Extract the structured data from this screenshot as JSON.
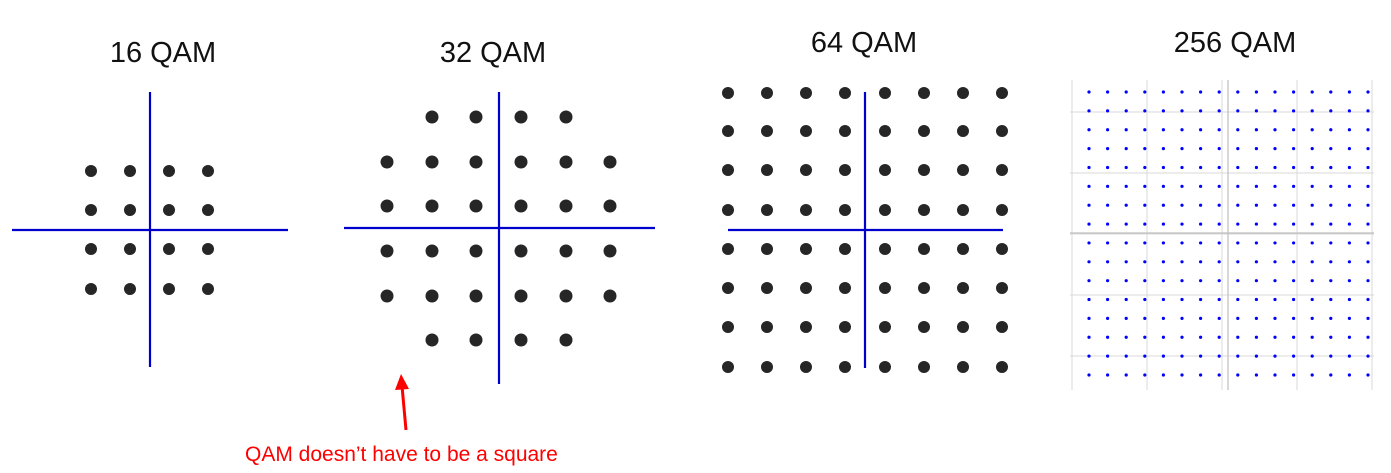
{
  "diagrams": [
    {
      "title": "16 QAM",
      "points": 16
    },
    {
      "title": "32 QAM",
      "points": 32
    },
    {
      "title": "64 QAM",
      "points": 64
    },
    {
      "title": "256 QAM",
      "points": 256
    }
  ],
  "annotation": {
    "text": "QAM doesn’t have to be a square",
    "color": "#ff0000"
  },
  "colors": {
    "axis": "#0000cc",
    "point": "#262626",
    "point_256": "#0000ff",
    "grid_256": "#d9d9d9"
  }
}
